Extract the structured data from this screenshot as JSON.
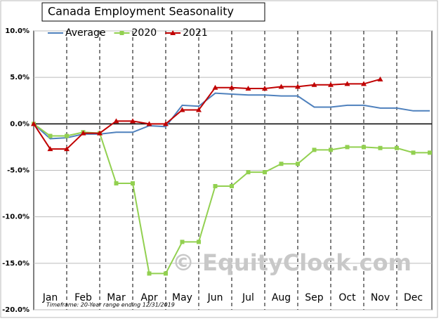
{
  "chart_data": {
    "type": "line",
    "title": "Canada Employment Seasonality",
    "footnote": "Timeframe: 20-Year range ending 12/31/2019",
    "watermark": "© EquityClock.com",
    "categories": [
      "Jan",
      "Feb",
      "Mar",
      "Apr",
      "May",
      "Jun",
      "Jul",
      "Aug",
      "Sep",
      "Oct",
      "Nov",
      "Dec"
    ],
    "x": [
      0,
      1,
      2,
      3,
      4,
      5,
      6,
      7,
      8,
      9,
      10,
      11,
      12,
      13,
      14,
      15,
      16,
      17,
      18,
      19,
      20,
      21,
      22,
      23,
      24
    ],
    "xlim": [
      0,
      24
    ],
    "xticks": [
      2,
      4,
      6,
      8,
      10,
      12,
      14,
      16,
      18,
      20,
      22
    ],
    "ylim": [
      -20,
      10
    ],
    "yticks": [
      {
        "value": -20,
        "label": "-20.0%"
      },
      {
        "value": -15,
        "label": "-15.0%"
      },
      {
        "value": -10,
        "label": "-10.0%"
      },
      {
        "value": -5,
        "label": "-5.0%"
      },
      {
        "value": 0,
        "label": "0.0%"
      },
      {
        "value": 5,
        "label": "5.0%"
      },
      {
        "value": 10,
        "label": "10.0%"
      }
    ],
    "grid": true,
    "legend": "top-left",
    "series": [
      {
        "name": "Average",
        "color": "#4f81bd",
        "marker": "none",
        "values": [
          0,
          -1.6,
          -1.5,
          -1.1,
          -1.1,
          -0.9,
          -0.9,
          -0.2,
          -0.3,
          2.0,
          1.9,
          3.3,
          3.2,
          3.1,
          3.1,
          3.0,
          3.0,
          1.8,
          1.8,
          2.0,
          2.0,
          1.7,
          1.7,
          1.4,
          1.4
        ]
      },
      {
        "name": "2020",
        "color": "#92d050",
        "marker": "square",
        "values": [
          0,
          -1.3,
          -1.3,
          -0.9,
          -1.0,
          -6.4,
          -6.4,
          -16.1,
          -16.1,
          -12.7,
          -12.7,
          -6.7,
          -6.7,
          -5.2,
          -5.2,
          -4.3,
          -4.3,
          -2.8,
          -2.8,
          -2.5,
          -2.5,
          -2.6,
          -2.6,
          -3.1,
          -3.1
        ]
      },
      {
        "name": "2021",
        "color": "#c00000",
        "marker": "triangle",
        "values": [
          0,
          -2.7,
          -2.7,
          -1.0,
          -1.0,
          0.3,
          0.3,
          0,
          0,
          1.5,
          1.5,
          3.9,
          3.9,
          3.8,
          3.8,
          4.0,
          4.0,
          4.2,
          4.2,
          4.3,
          4.3,
          4.8,
          null,
          null,
          null
        ]
      }
    ]
  }
}
